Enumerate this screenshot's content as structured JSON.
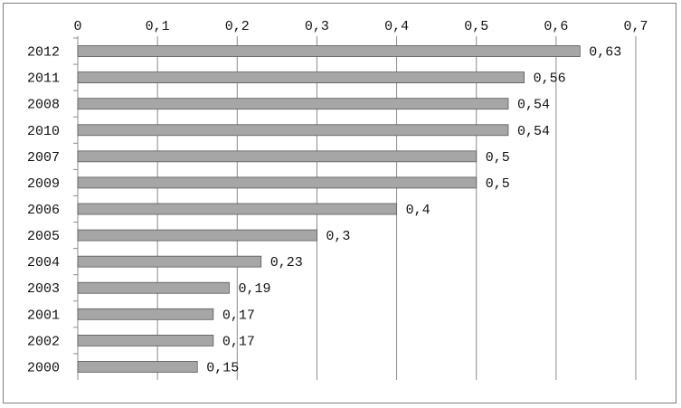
{
  "chart_data": {
    "type": "bar",
    "orientation": "horizontal",
    "title": "",
    "xlabel": "",
    "ylabel": "",
    "xlim": [
      0,
      0.7
    ],
    "x_axis_position": "top",
    "grid": true,
    "legend": "none",
    "bar_color": "#a6a6a6",
    "bar_edge_color": "#595959",
    "tick_labels": [
      "0",
      "0,1",
      "0,2",
      "0,3",
      "0,4",
      "0,5",
      "0,6",
      "0,7"
    ],
    "categories": [
      "2012",
      "2011",
      "2008",
      "2010",
      "2007",
      "2009",
      "2006",
      "2005",
      "2004",
      "2003",
      "2001",
      "2002",
      "2000"
    ],
    "values": [
      0.63,
      0.56,
      0.54,
      0.54,
      0.5,
      0.5,
      0.4,
      0.3,
      0.23,
      0.19,
      0.17,
      0.17,
      0.15
    ],
    "value_labels": [
      "0,63",
      "0,56",
      "0,54",
      "0,54",
      "0,5",
      "0,5",
      "0,4",
      "0,3",
      "0,23",
      "0,19",
      "0,17",
      "0,17",
      "0,15"
    ]
  }
}
